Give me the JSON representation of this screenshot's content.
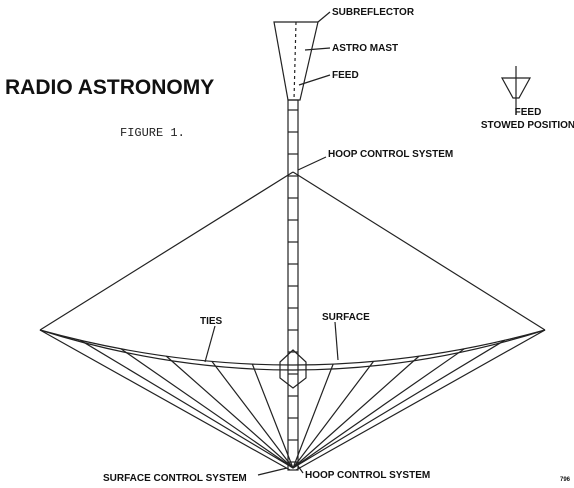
{
  "header": {
    "title": "RADIO ASTRONOMY",
    "figure": "FIGURE 1."
  },
  "labels": {
    "subreflector": "SUBREFLECTOR",
    "astro_mast": "ASTRO MAST",
    "feed": "FEED",
    "hoop_top": "HOOP CONTROL SYSTEM",
    "ties": "TIES",
    "surface": "SURFACE",
    "surface_control": "SURFACE CONTROL SYSTEM",
    "hoop_bottom": "HOOP CONTROL SYSTEM",
    "stowed": [
      "FEED",
      "STOWED POSITION"
    ],
    "code": "796"
  }
}
